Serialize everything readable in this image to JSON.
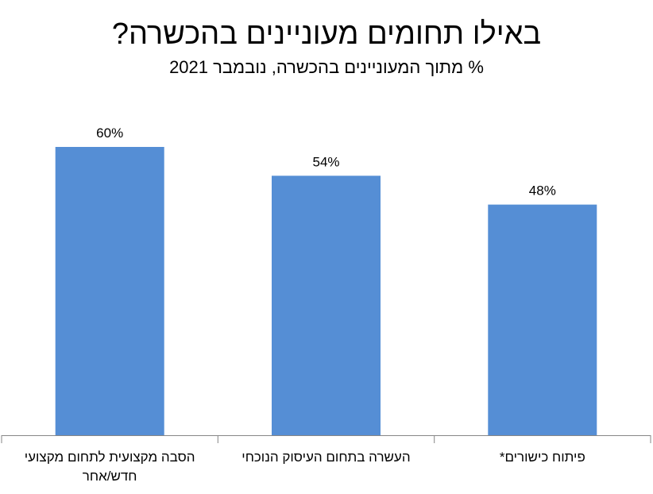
{
  "chart_data": {
    "type": "bar",
    "title": "באילו תחומים מעוניינים בהכשרה?",
    "subtitle": "% מתוך המעוניינים בהכשרה, נובמבר 2021",
    "categories": [
      "הסבה מקצועית לתחום מקצועי חדש/אחר",
      "העשרה בתחום העיסוק הנוכחי",
      "פיתוח כישורים*"
    ],
    "values": [
      60,
      54,
      48
    ],
    "data_labels": [
      "60%",
      "54%",
      "48%"
    ],
    "ylim": [
      0,
      100
    ],
    "grid": false,
    "legend": "none",
    "bar_color": "#558ed5",
    "axis_color": "#868686"
  }
}
